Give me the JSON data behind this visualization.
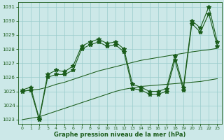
{
  "hours": [
    0,
    1,
    2,
    3,
    4,
    5,
    6,
    7,
    8,
    9,
    10,
    11,
    12,
    13,
    14,
    15,
    16,
    17,
    18,
    19,
    20,
    21,
    22,
    23
  ],
  "series1": [
    1025.0,
    1025.1,
    1023.0,
    1026.0,
    1026.2,
    1026.2,
    1026.5,
    1028.0,
    1028.3,
    1028.5,
    1028.2,
    1028.3,
    1027.8,
    1025.2,
    1025.1,
    1024.8,
    1024.8,
    1025.0,
    1027.2,
    1025.1,
    1029.8,
    1029.2,
    1030.5,
    1028.2
  ],
  "series2": [
    1025.1,
    1025.3,
    1023.1,
    1026.2,
    1026.5,
    1026.4,
    1026.8,
    1028.2,
    1028.5,
    1028.7,
    1028.4,
    1028.5,
    1028.0,
    1025.5,
    1025.3,
    1025.0,
    1025.0,
    1025.2,
    1027.5,
    1025.3,
    1030.0,
    1029.5,
    1031.0,
    1028.5
  ],
  "trend_low": [
    1023.0,
    1023.1,
    1023.2,
    1023.4,
    1023.6,
    1023.8,
    1024.0,
    1024.2,
    1024.4,
    1024.6,
    1024.8,
    1025.0,
    1025.15,
    1025.25,
    1025.35,
    1025.4,
    1025.45,
    1025.5,
    1025.55,
    1025.6,
    1025.65,
    1025.7,
    1025.8,
    1025.9
  ],
  "trend_high": [
    1025.0,
    1025.1,
    1025.15,
    1025.3,
    1025.5,
    1025.65,
    1025.85,
    1026.05,
    1026.25,
    1026.45,
    1026.6,
    1026.75,
    1026.9,
    1027.05,
    1027.2,
    1027.3,
    1027.4,
    1027.5,
    1027.6,
    1027.7,
    1027.8,
    1027.88,
    1027.95,
    1028.05
  ],
  "ylim": [
    1022.7,
    1031.3
  ],
  "yticks": [
    1023,
    1024,
    1025,
    1026,
    1027,
    1028,
    1029,
    1030,
    1031
  ],
  "xlabel": "Graphe pression niveau de la mer (hPa)",
  "bg_color": "#cce8e8",
  "line_color": "#1a5c1a",
  "grid_color": "#99cccc"
}
